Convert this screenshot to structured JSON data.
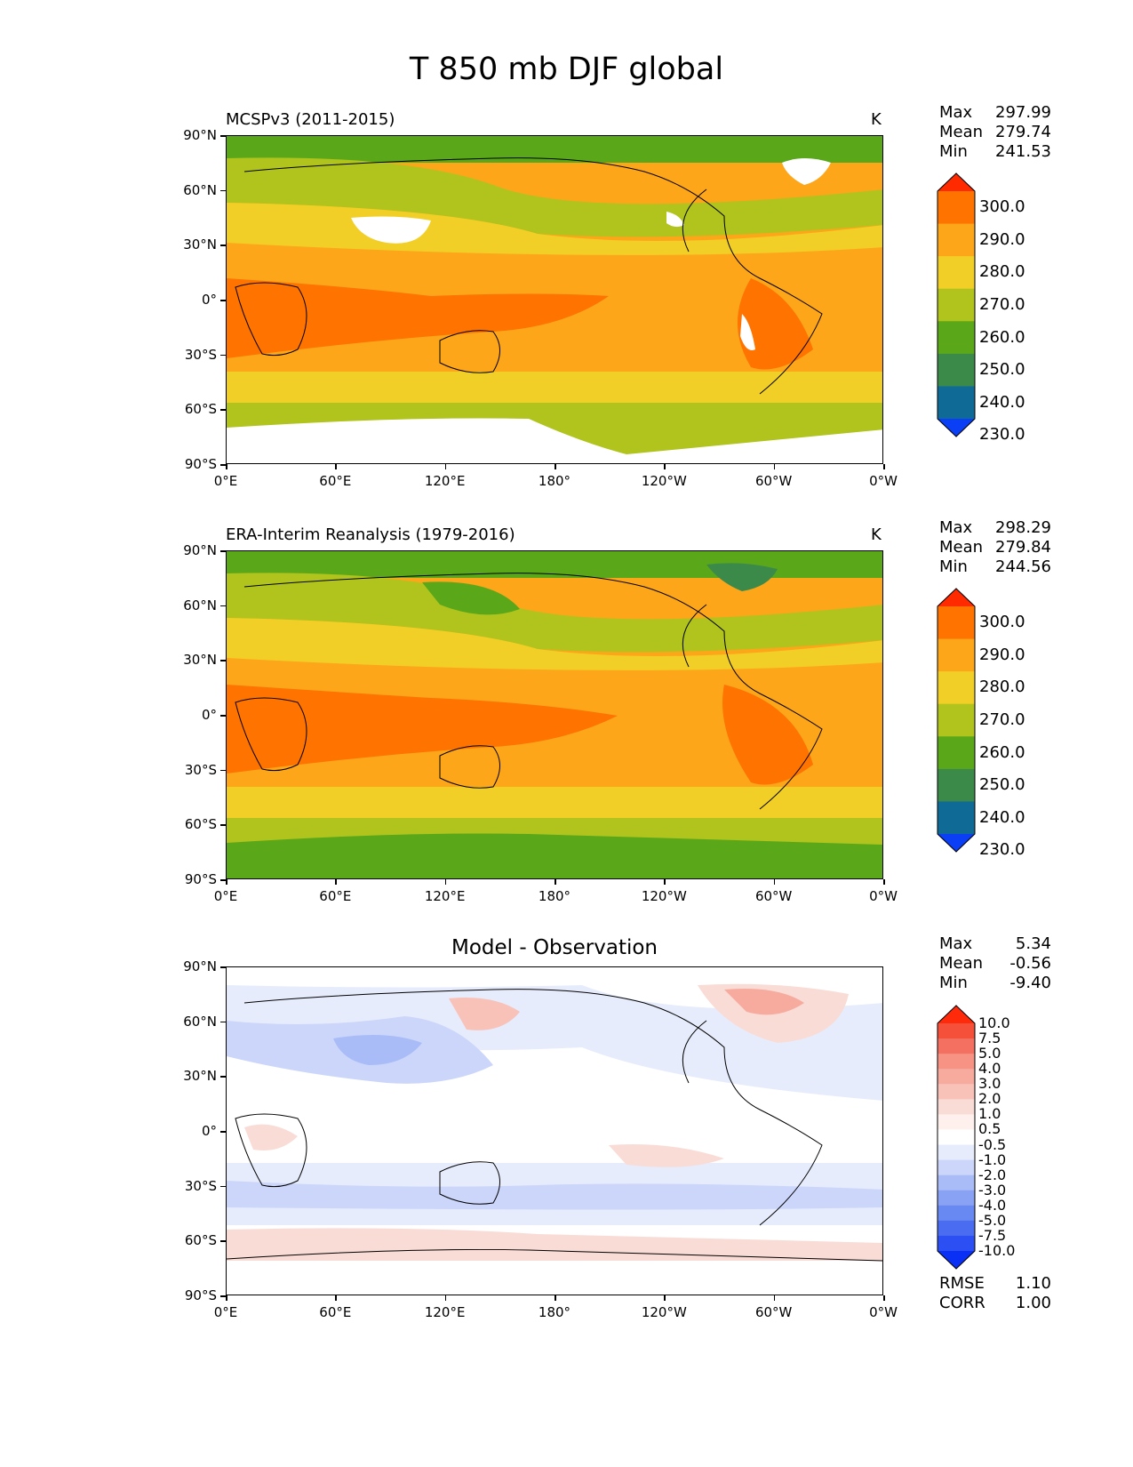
{
  "figure": {
    "title": "T 850 mb DJF global"
  },
  "axes": {
    "x_ticks": [
      "0°E",
      "60°E",
      "120°E",
      "180°",
      "120°W",
      "60°W",
      "0°W"
    ],
    "y_ticks": [
      "90°N",
      "60°N",
      "30°N",
      "0°",
      "30°S",
      "60°S",
      "90°S"
    ]
  },
  "panels": [
    {
      "left_title": "MCSPv3 (2011-2015)",
      "unit": "K",
      "stats": {
        "max_label": "Max",
        "max": "297.99",
        "mean_label": "Mean",
        "mean": "279.74",
        "min_label": "Min",
        "min": "241.53"
      },
      "colorbar": {
        "labels": [
          "300.0",
          "290.0",
          "280.0",
          "270.0",
          "260.0",
          "250.0",
          "240.0",
          "230.0"
        ],
        "colors": [
          "#ff2a00",
          "#ff7300",
          "#fda61a",
          "#f2cf26",
          "#b0c41d",
          "#5aa81a",
          "#3c8a4a",
          "#106a96",
          "#0a3ff5"
        ]
      }
    },
    {
      "left_title": "ERA-Interim Reanalysis (1979-2016)",
      "unit": "K",
      "stats": {
        "max_label": "Max",
        "max": "298.29",
        "mean_label": "Mean",
        "mean": "279.84",
        "min_label": "Min",
        "min": "244.56"
      },
      "colorbar": {
        "labels": [
          "300.0",
          "290.0",
          "280.0",
          "270.0",
          "260.0",
          "250.0",
          "240.0",
          "230.0"
        ],
        "colors": [
          "#ff2a00",
          "#ff7300",
          "#fda61a",
          "#f2cf26",
          "#b0c41d",
          "#5aa81a",
          "#3c8a4a",
          "#106a96",
          "#0a3ff5"
        ]
      }
    },
    {
      "center_title": "Model - Observation",
      "stats": {
        "max_label": "Max",
        "max": "5.34",
        "mean_label": "Mean",
        "mean": "-0.56",
        "min_label": "Min",
        "min": "-9.40"
      },
      "metrics": {
        "rmse_label": "RMSE",
        "rmse": "1.10",
        "corr_label": "CORR",
        "corr": "1.00"
      },
      "colorbar": {
        "labels": [
          "10.0",
          "7.5",
          "5.0",
          "4.0",
          "3.0",
          "2.0",
          "1.0",
          "0.5",
          "-0.5",
          "-1.0",
          "-2.0",
          "-3.0",
          "-4.0",
          "-5.0",
          "-7.5",
          "-10.0"
        ],
        "colors": [
          "#ff2a0a",
          "#f4503a",
          "#f47060",
          "#f69384",
          "#f7ab9f",
          "#f8c2b9",
          "#f9dcd6",
          "#fdf0ed",
          "#ffffff",
          "#e6ecfc",
          "#cbd6fa",
          "#aabcf7",
          "#8aa2f4",
          "#6888f2",
          "#4a6cf0",
          "#2c4ff4",
          "#0a30f5"
        ]
      }
    }
  ]
}
